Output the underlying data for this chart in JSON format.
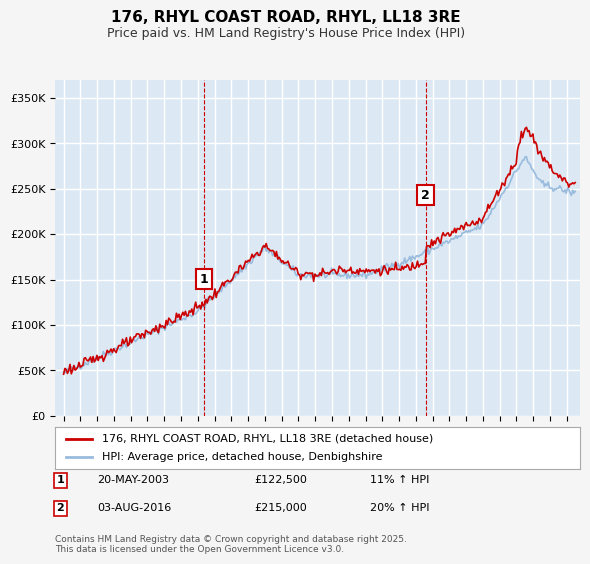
{
  "title": "176, RHYL COAST ROAD, RHYL, LL18 3RE",
  "subtitle": "Price paid vs. HM Land Registry's House Price Index (HPI)",
  "ylabel_ticks": [
    "£0",
    "£50K",
    "£100K",
    "£150K",
    "£200K",
    "£250K",
    "£300K",
    "£350K"
  ],
  "ytick_values": [
    0,
    50000,
    100000,
    150000,
    200000,
    250000,
    300000,
    350000
  ],
  "ylim": [
    0,
    370000
  ],
  "xlim_start": 1995.0,
  "xlim_end": 2025.5,
  "background_color": "#dce9f5",
  "plot_bg_color": "#dce9f5",
  "grid_color": "#ffffff",
  "red_line_color": "#cc0000",
  "blue_line_color": "#99bbdd",
  "marker1_x": 2003.38,
  "marker1_y": 122500,
  "marker2_x": 2016.58,
  "marker2_y": 215000,
  "annotation1": "20-MAY-2003",
  "annotation1_price": "£122,500",
  "annotation1_hpi": "11% ↑ HPI",
  "annotation2": "03-AUG-2016",
  "annotation2_price": "£215,000",
  "annotation2_hpi": "20% ↑ HPI",
  "footer": "Contains HM Land Registry data © Crown copyright and database right 2025.\nThis data is licensed under the Open Government Licence v3.0.",
  "legend1": "176, RHYL COAST ROAD, RHYL, LL18 3RE (detached house)",
  "legend2": "HPI: Average price, detached house, Denbighshire"
}
